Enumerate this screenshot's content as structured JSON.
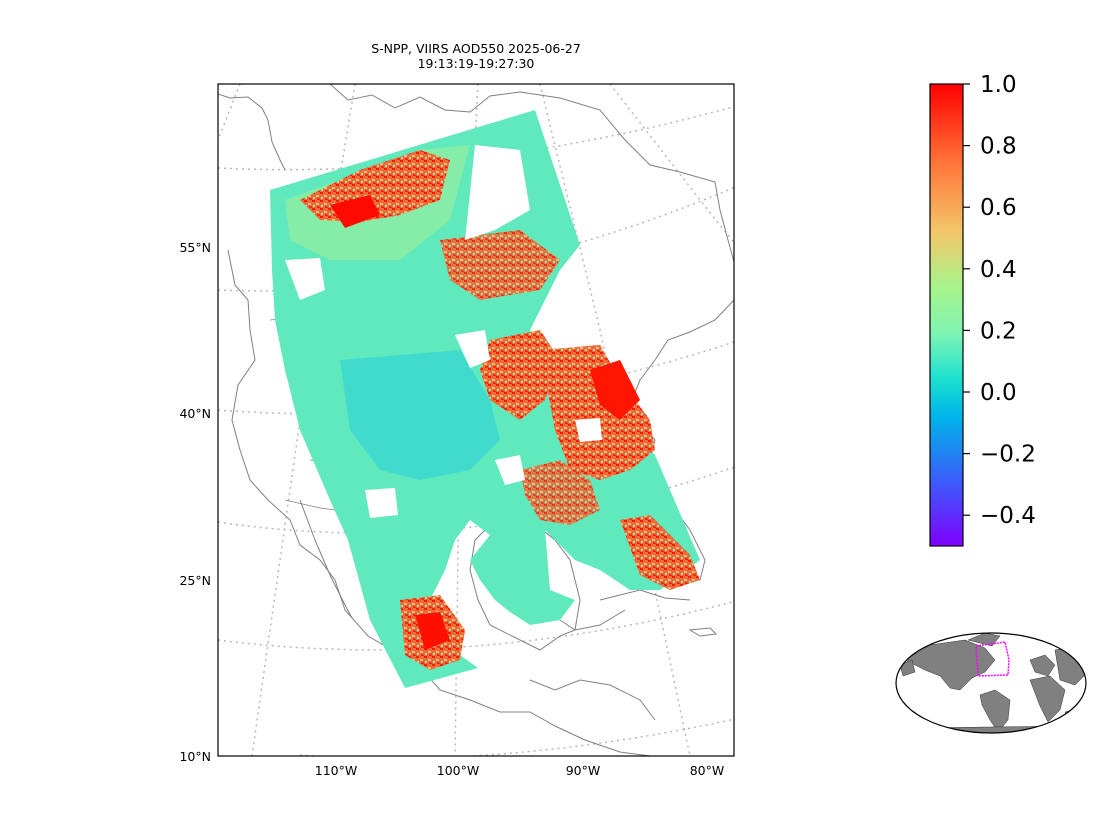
{
  "title": {
    "line1": "S-NPP, VIIRS AOD550 2025-06-27",
    "line2": "19:13:19-19:27:30"
  },
  "map": {
    "projection": "lambert-conformal",
    "lat_labels": [
      "55°N",
      "40°N",
      "25°N",
      "10°N"
    ],
    "lon_labels": [
      "110°W",
      "100°W",
      "90°W",
      "80°W"
    ],
    "coastline_color": "#808080",
    "graticule_color": "#b8b8b8"
  },
  "colorbar": {
    "colormap": "rainbow",
    "min": -0.5,
    "max": 1.0,
    "ticks": [
      "1.0",
      "0.8",
      "0.6",
      "0.4",
      "0.2",
      "0.0",
      "−0.2",
      "−0.4"
    ]
  },
  "inset": {
    "type": "robinson-world-locator",
    "land_color": "#808080",
    "box_color": "#ff00ff"
  },
  "colors": {
    "low": "#7a00ff",
    "mid": "#4fe8b8",
    "high": "#ff1a00"
  }
}
